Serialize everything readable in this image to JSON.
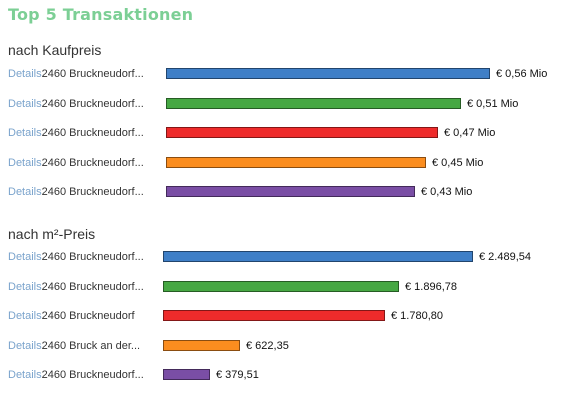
{
  "title": "Top 5 Transaktionen",
  "colors": [
    "#3f7fc7",
    "#46a843",
    "#ee2b2b",
    "#fb8d1f",
    "#7a4ea5"
  ],
  "chart_data": [
    {
      "type": "bar",
      "orientation": "horizontal",
      "title": "nach Kaufpreis",
      "categories": [
        "2460 Bruckneudorf...",
        "2460 Bruckneudorf...",
        "2460 Bruckneudorf...",
        "2460 Bruckneudorf...",
        "2460 Bruckneudorf..."
      ],
      "details_label": "Details",
      "values": [
        0.56,
        0.51,
        0.47,
        0.45,
        0.43
      ],
      "value_labels": [
        "€ 0,56 Mio",
        "€ 0,51 Mio",
        "€ 0,47 Mio",
        "€ 0,45 Mio",
        "€ 0,43 Mio"
      ]
    },
    {
      "type": "bar",
      "orientation": "horizontal",
      "title": "nach m²-Preis",
      "categories": [
        "2460 Bruckneudorf...",
        "2460 Bruckneudorf...",
        "2460 Bruckneudorf",
        "2460 Bruck an der...",
        "2460 Bruckneudorf..."
      ],
      "details_label": "Details",
      "values": [
        2489.54,
        1896.78,
        1780.8,
        622.35,
        379.51
      ],
      "value_labels": [
        "€ 2.489,54",
        "€ 1.896,78",
        "€ 1.780,80",
        "€ 622,35",
        "€ 379,51"
      ]
    }
  ]
}
